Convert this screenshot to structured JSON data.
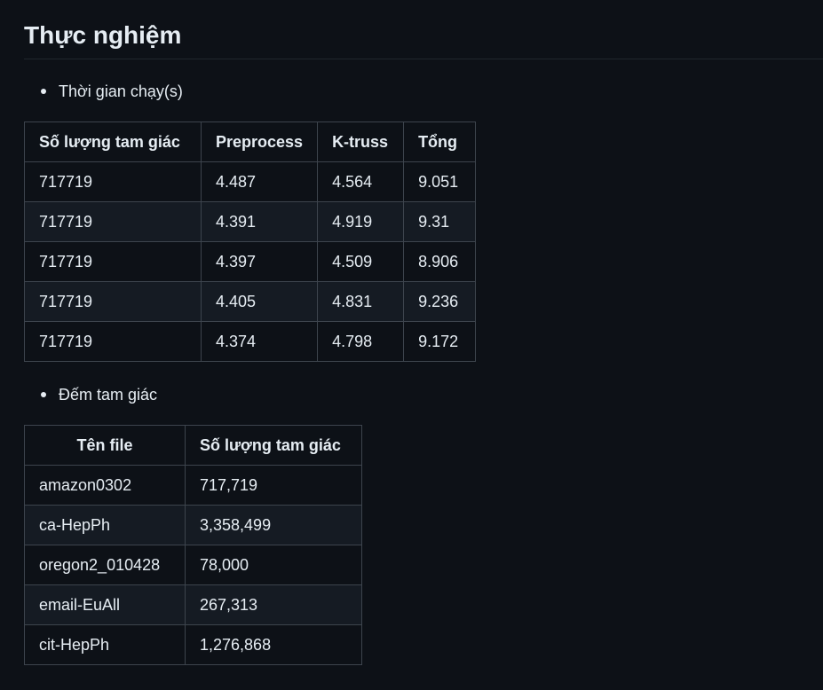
{
  "heading": "Thực nghiệm",
  "section1": {
    "bullet": "Thời gian chạy(s)",
    "table": {
      "headers": [
        "Số lượng tam giác",
        "Preprocess",
        "K-truss",
        "Tổng"
      ],
      "rows": [
        [
          "717719",
          "4.487",
          "4.564",
          "9.051"
        ],
        [
          "717719",
          "4.391",
          "4.919",
          "9.31"
        ],
        [
          "717719",
          "4.397",
          "4.509",
          "8.906"
        ],
        [
          "717719",
          "4.405",
          "4.831",
          "9.236"
        ],
        [
          "717719",
          "4.374",
          "4.798",
          "9.172"
        ]
      ]
    }
  },
  "section2": {
    "bullet": "Đếm tam giác",
    "table": {
      "headers": [
        "Tên file",
        "Số lượng tam giác"
      ],
      "rows": [
        [
          "amazon0302",
          "717,719"
        ],
        [
          "ca-HepPh",
          "3,358,499"
        ],
        [
          "oregon2_010428",
          "78,000"
        ],
        [
          "email-EuAll",
          "267,313"
        ],
        [
          "cit-HepPh",
          "1,276,868"
        ]
      ]
    }
  }
}
